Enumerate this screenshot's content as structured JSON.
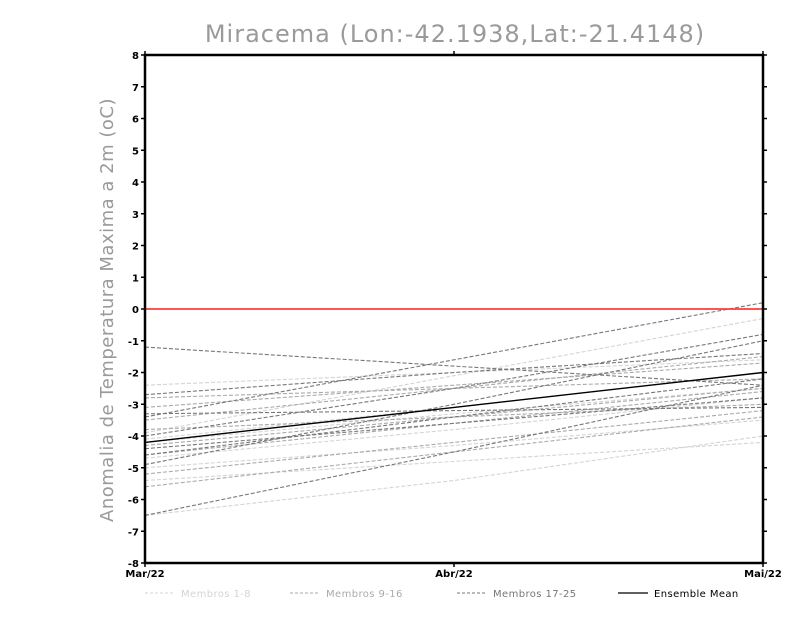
{
  "chart_data": {
    "type": "line",
    "title": "Miracema (Lon:-42.1938,Lat:-21.4148)",
    "ylabel": "Anomalia de Temperatura Maxima a 2m (oC)",
    "xlabel": "",
    "x_ticks": [
      "Mar/22",
      "Abr/22",
      "Mai/22"
    ],
    "y_ticks": [
      "8",
      "7",
      "6",
      "5",
      "4",
      "3",
      "2",
      "1",
      "0",
      "-1",
      "-2",
      "-3",
      "-4",
      "-5",
      "-6",
      "-7",
      "-8"
    ],
    "ylim": [
      -8,
      8
    ],
    "grid": false,
    "reference_line": {
      "y": 0,
      "color": "#ff3b3b"
    },
    "legend_placement": "bottom",
    "legend": [
      {
        "label": "Membros 1-8",
        "color": "#d4d4d4",
        "style": "dashed"
      },
      {
        "label": "Membros 9-16",
        "color": "#aaaaaa",
        "style": "dashed"
      },
      {
        "label": "Membros 17-25",
        "color": "#777777",
        "style": "dashed"
      },
      {
        "label": "Ensemble Mean",
        "color": "#000000",
        "style": "solid"
      }
    ],
    "series": [
      {
        "group": 1,
        "values": [
          -4.1,
          -3.1,
          -2.0
        ]
      },
      {
        "group": 1,
        "values": [
          -5.0,
          -4.3,
          -3.5
        ]
      },
      {
        "group": 1,
        "values": [
          -2.4,
          -2.0,
          -1.6
        ]
      },
      {
        "group": 1,
        "values": [
          -5.4,
          -4.8,
          -4.2
        ]
      },
      {
        "group": 1,
        "values": [
          -4.7,
          -3.8,
          -2.8
        ]
      },
      {
        "group": 1,
        "values": [
          -6.5,
          -5.4,
          -4.0
        ]
      },
      {
        "group": 1,
        "values": [
          -3.9,
          -2.1,
          -0.3
        ]
      },
      {
        "group": 1,
        "values": [
          -4.2,
          -3.3,
          -2.5
        ]
      },
      {
        "group": 2,
        "values": [
          -2.8,
          -2.5,
          -2.2
        ]
      },
      {
        "group": 2,
        "values": [
          -4.3,
          -3.4,
          -2.5
        ]
      },
      {
        "group": 2,
        "values": [
          -3.5,
          -2.5,
          -1.5
        ]
      },
      {
        "group": 2,
        "values": [
          -5.2,
          -4.2,
          -3.2
        ]
      },
      {
        "group": 2,
        "values": [
          -3.1,
          -2.4,
          -1.7
        ]
      },
      {
        "group": 2,
        "values": [
          -4.6,
          -3.6,
          -2.6
        ]
      },
      {
        "group": 2,
        "values": [
          -5.6,
          -4.5,
          -3.4
        ]
      },
      {
        "group": 2,
        "values": [
          -3.8,
          -3.4,
          -3.0
        ]
      },
      {
        "group": 3,
        "values": [
          -1.2,
          -1.8,
          -2.4
        ]
      },
      {
        "group": 3,
        "values": [
          -3.4,
          -1.6,
          0.2
        ]
      },
      {
        "group": 3,
        "values": [
          -4.9,
          -3.0,
          -1.0
        ]
      },
      {
        "group": 3,
        "values": [
          -4.4,
          -3.6,
          -2.8
        ]
      },
      {
        "group": 3,
        "values": [
          -2.7,
          -2.0,
          -1.4
        ]
      },
      {
        "group": 3,
        "values": [
          -6.5,
          -4.5,
          -2.4
        ]
      },
      {
        "group": 3,
        "values": [
          -4.0,
          -2.5,
          -0.8
        ]
      },
      {
        "group": 3,
        "values": [
          -3.3,
          -3.2,
          -3.1
        ]
      },
      {
        "group": 3,
        "values": [
          -4.6,
          -3.4,
          -2.2
        ]
      },
      {
        "group": 4,
        "values": [
          -4.2,
          -3.1,
          -2.0
        ]
      }
    ]
  }
}
